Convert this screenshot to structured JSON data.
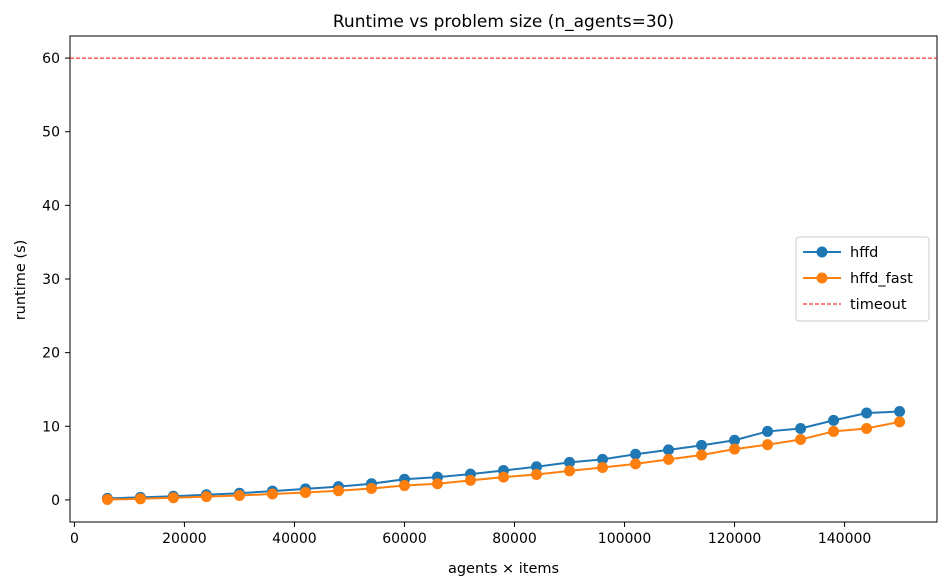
{
  "chart_data": {
    "type": "line",
    "title": "Runtime vs problem size (n_agents=30)",
    "xlabel": "agents × items",
    "ylabel": "runtime (s)",
    "xlim": [
      -800,
      156800
    ],
    "ylim": [
      -3,
      63
    ],
    "xticks": [
      0,
      20000,
      40000,
      60000,
      80000,
      100000,
      120000,
      140000
    ],
    "yticks": [
      0,
      10,
      20,
      30,
      40,
      50,
      60
    ],
    "grid": false,
    "legend_position": "center-right",
    "x": [
      6000,
      12000,
      18000,
      24000,
      30000,
      36000,
      42000,
      48000,
      54000,
      60000,
      66000,
      72000,
      78000,
      84000,
      90000,
      96000,
      102000,
      108000,
      114000,
      120000,
      126000,
      132000,
      138000,
      144000,
      150000
    ],
    "series": [
      {
        "name": "hffd",
        "color": "#1f77b4",
        "marker": "circle",
        "values": [
          0.2,
          0.35,
          0.5,
          0.7,
          0.9,
          1.2,
          1.5,
          1.8,
          2.2,
          2.8,
          3.1,
          3.5,
          4.0,
          4.5,
          5.1,
          5.5,
          6.2,
          6.8,
          7.4,
          8.1,
          9.3,
          9.7,
          10.8,
          11.8,
          12.0
        ]
      },
      {
        "name": "hffd_fast",
        "color": "#ff7f0e",
        "marker": "circle",
        "values": [
          0.05,
          0.15,
          0.3,
          0.45,
          0.6,
          0.8,
          1.0,
          1.25,
          1.55,
          1.95,
          2.2,
          2.65,
          3.1,
          3.45,
          3.95,
          4.4,
          4.9,
          5.5,
          6.1,
          6.9,
          7.5,
          8.2,
          9.3,
          9.7,
          10.6
        ]
      }
    ],
    "reference_lines": [
      {
        "name": "timeout",
        "y": 60,
        "color": "#ff0000",
        "style": "dashed"
      }
    ]
  }
}
